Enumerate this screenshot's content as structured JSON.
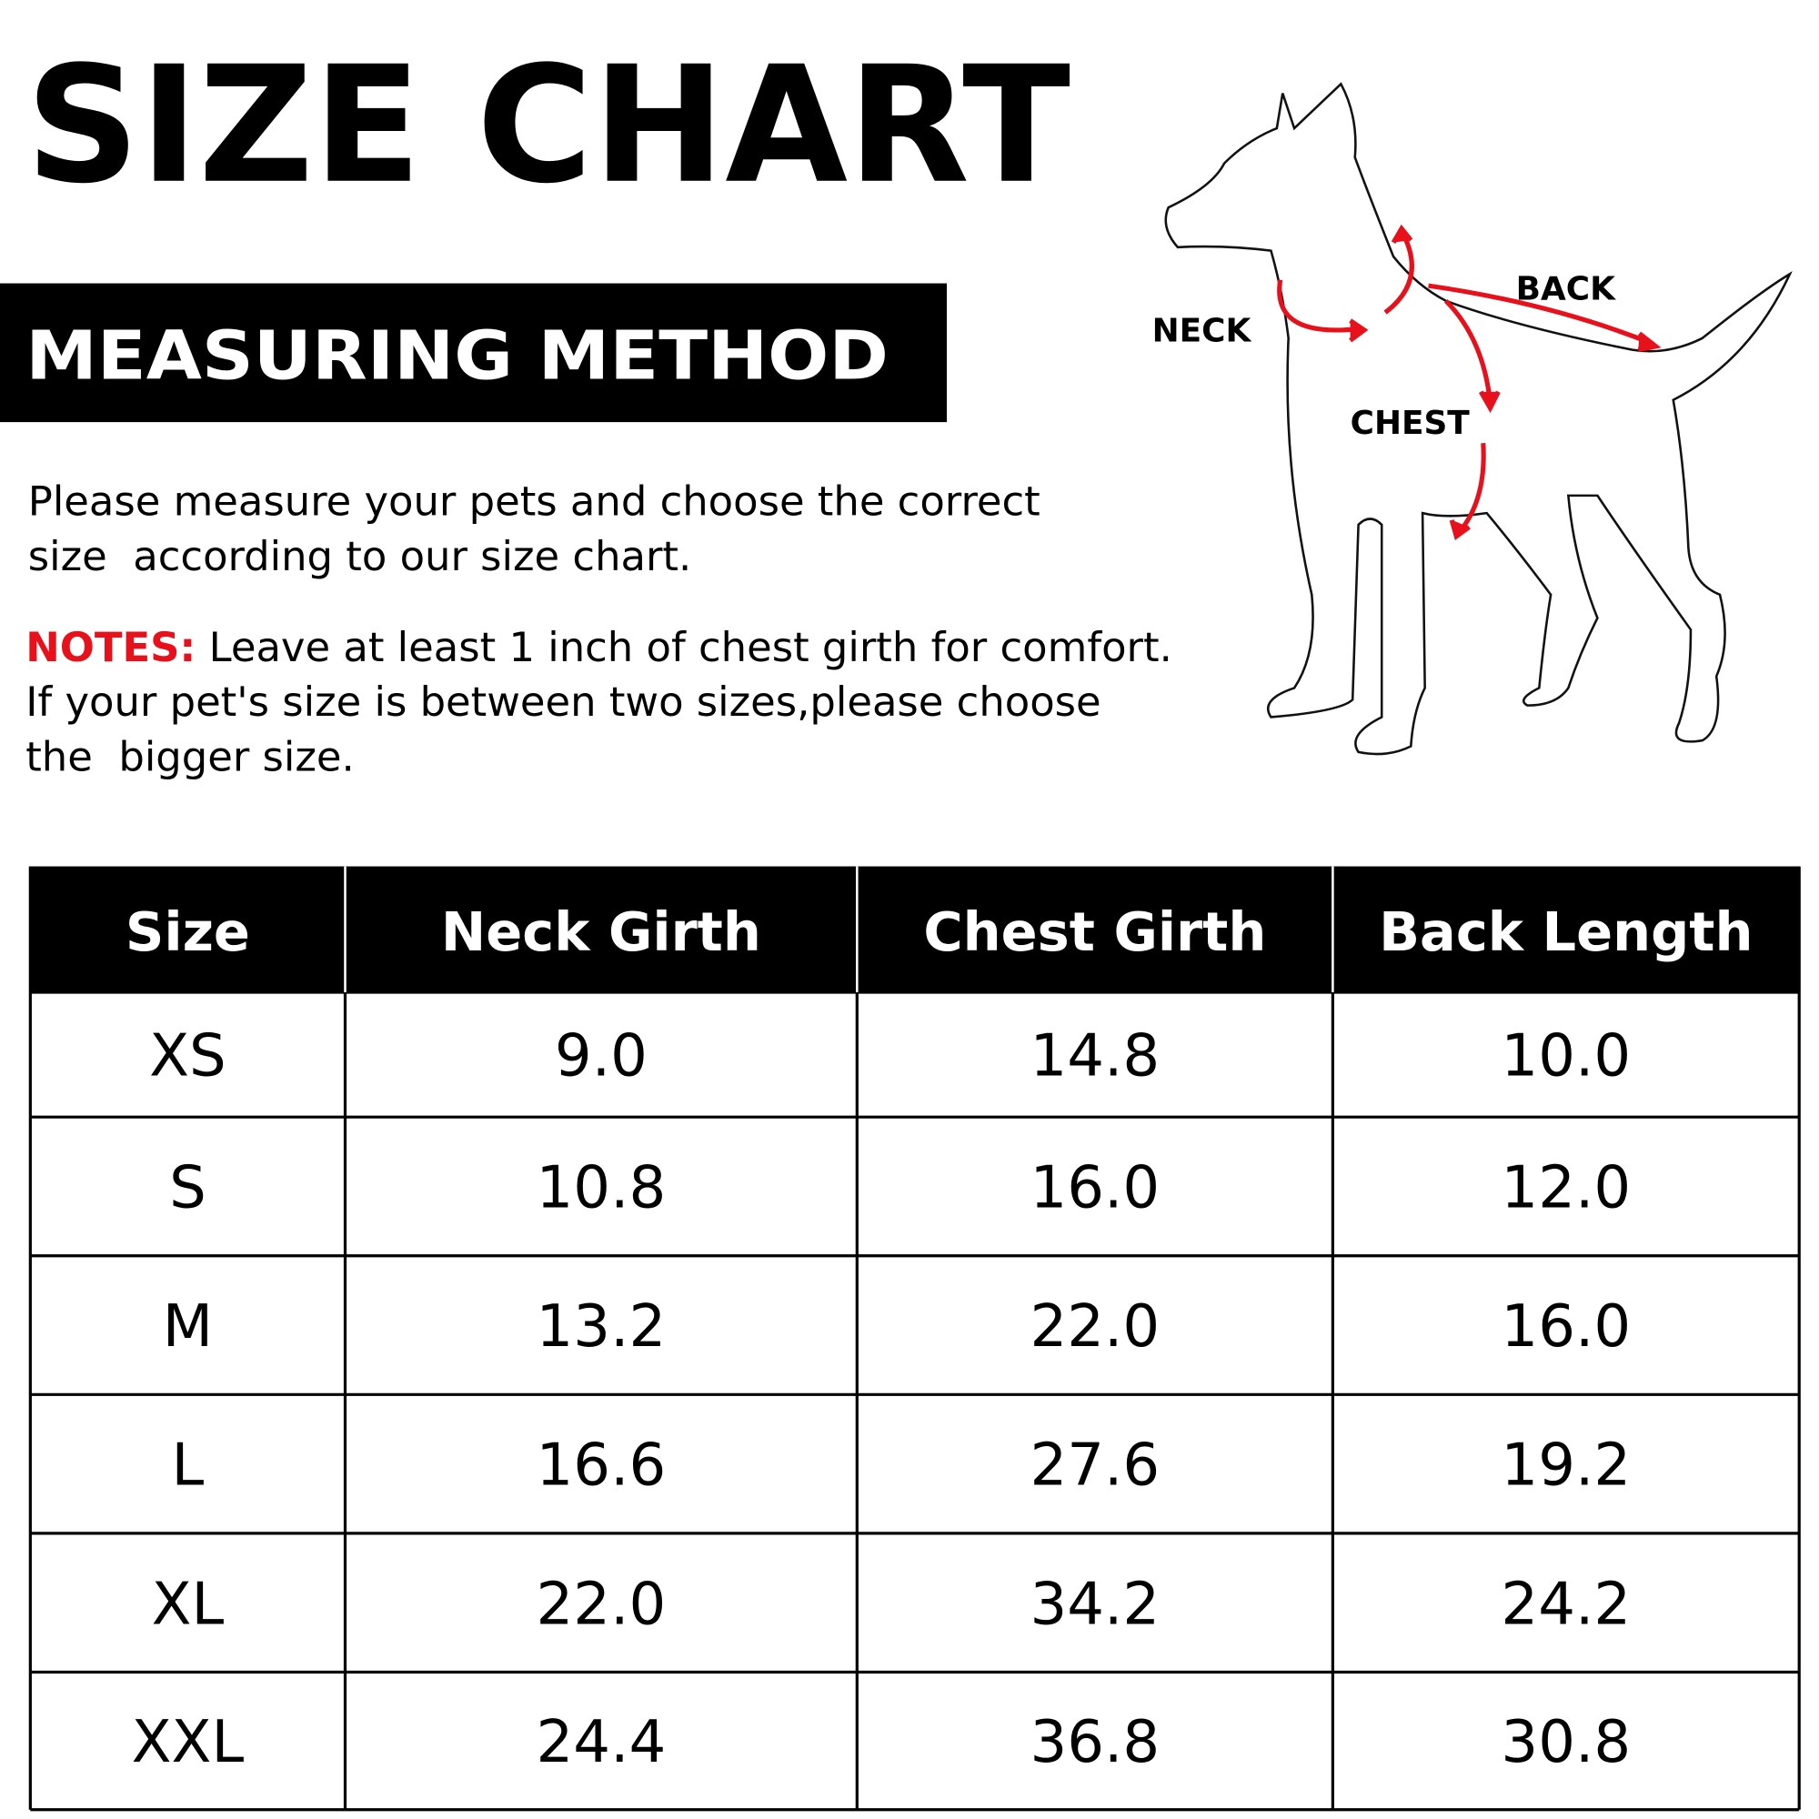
{
  "title": "SIZE CHART",
  "section_title": "MEASURING METHOD",
  "intro": [
    "Please measure your pets and choose the correct",
    "size  according to our size chart."
  ],
  "notes": {
    "label": "NOTES:",
    "lines": [
      "Leave at least 1 inch of chest girth for comfort.",
      "If your pet's size is between two sizes,please choose",
      "the  bigger size."
    ]
  },
  "diagram": {
    "neck": "NECK",
    "back": "BACK",
    "chest": "CHEST"
  },
  "table": {
    "header": [
      "Size",
      "Neck Girth",
      "Chest Girth",
      "Back Length"
    ],
    "rows": [
      [
        "XS",
        "9.0",
        "14.8",
        "10.0"
      ],
      [
        "S",
        "10.8",
        "16.0",
        "12.0"
      ],
      [
        "M",
        "13.2",
        "22.0",
        "16.0"
      ],
      [
        "L",
        "16.6",
        "27.6",
        "19.2"
      ],
      [
        "XL",
        "22.0",
        "34.2",
        "24.2"
      ],
      [
        "XXL",
        "24.4",
        "36.8",
        "30.8"
      ]
    ]
  }
}
